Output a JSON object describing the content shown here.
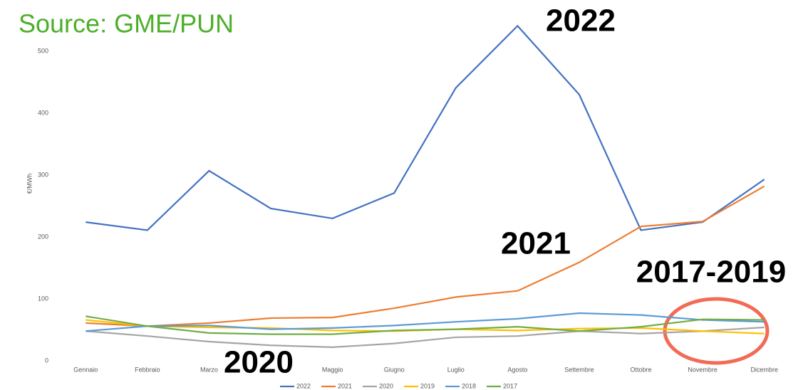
{
  "chart_data": {
    "type": "line",
    "source": "Source: GME/PUN",
    "y_label": "€/MWh",
    "annotations": [
      "2022",
      "2021",
      "2017-2019",
      "2020"
    ],
    "categories": [
      "Gennaio",
      "Febbraio",
      "Marzo",
      null,
      "Maggio",
      "Giugno",
      "Luglio",
      "Agosto",
      "Settembre",
      "Ottobre",
      "Novembre",
      "Dicembre"
    ],
    "series": [
      {
        "name": "2022",
        "color": "#4472c4",
        "values": [
          224,
          211,
          307,
          246,
          230,
          271,
          441,
          541,
          430,
          211,
          224,
          293
        ]
      },
      {
        "name": "2021",
        "color": "#ed7d31",
        "values": [
          61,
          56,
          61,
          69,
          70,
          85,
          103,
          113,
          159,
          217,
          225,
          282
        ]
      },
      {
        "name": "2020",
        "color": "#a5a5a5",
        "values": [
          48,
          40,
          31,
          25,
          22,
          28,
          38,
          40,
          48,
          44,
          48,
          54
        ]
      },
      {
        "name": "2019",
        "color": "#ffc000",
        "values": [
          66,
          56,
          54,
          53,
          49,
          48,
          51,
          49,
          52,
          53,
          48,
          44
        ]
      },
      {
        "name": "2018",
        "color": "#5b9bd5",
        "values": [
          48,
          56,
          57,
          51,
          53,
          57,
          63,
          68,
          77,
          74,
          66,
          63
        ]
      },
      {
        "name": "2017",
        "color": "#70ad47",
        "values": [
          72,
          56,
          45,
          43,
          43,
          49,
          51,
          55,
          48,
          55,
          67,
          66
        ]
      }
    ],
    "ylim": [
      0,
      550
    ],
    "yticks": [
      0,
      100,
      200,
      300,
      400,
      500
    ],
    "legend": "bottom"
  }
}
